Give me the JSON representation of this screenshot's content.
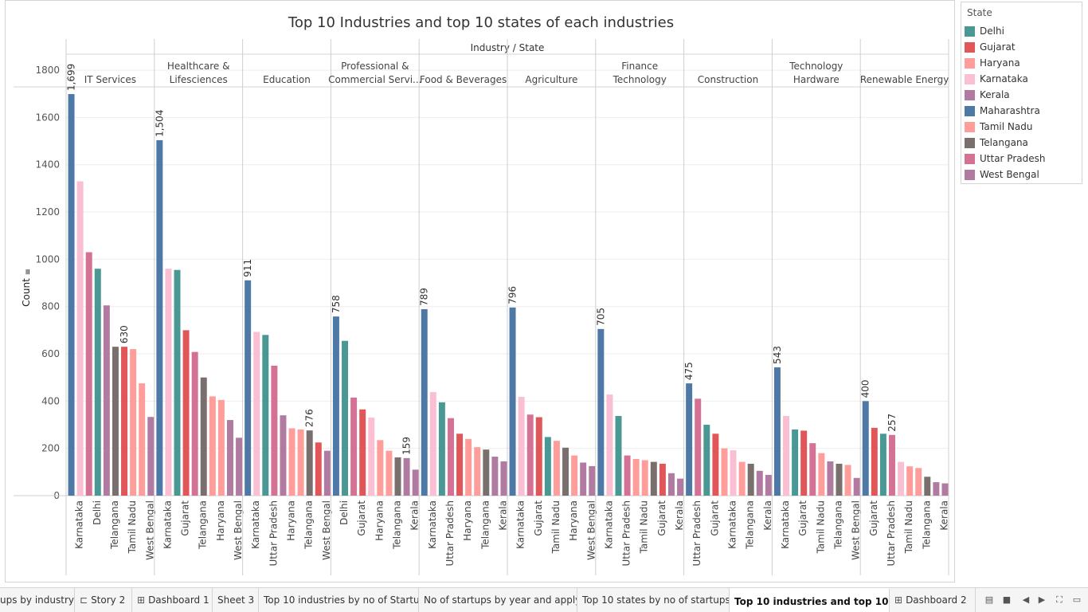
{
  "chart_data": {
    "type": "bar",
    "title": "Top 10 Industries and top 10 states of each industries",
    "column_header": "Industry / State",
    "ylabel": "Count",
    "ylim": [
      0,
      1900
    ],
    "yticks": [
      0,
      200,
      400,
      600,
      800,
      1000,
      1200,
      1400,
      1600,
      1800
    ],
    "grid": true,
    "legend_placement": "right",
    "groups": [
      {
        "industry": [
          "IT Services"
        ],
        "bars": [
          {
            "state": "Maharashtra",
            "value": 1699,
            "label": "1,699"
          },
          {
            "state": "Karnataka",
            "value": 1330
          },
          {
            "state": "Uttar Pradesh",
            "value": 1030
          },
          {
            "state": "Delhi",
            "value": 960
          },
          {
            "state": "Kerala",
            "value": 805
          },
          {
            "state": "Telangana",
            "value": 630
          },
          {
            "state": "Gujarat",
            "value": 630,
            "label": "630"
          },
          {
            "state": "Tamil Nadu",
            "value": 620
          },
          {
            "state": "Haryana",
            "value": 475
          },
          {
            "state": "West Bengal",
            "value": 333
          }
        ],
        "ticks": [
          "Karnataka",
          "Delhi",
          "Telangana",
          "Tamil Nadu",
          "West Bengal"
        ]
      },
      {
        "industry": [
          "Healthcare &",
          "Lifesciences"
        ],
        "bars": [
          {
            "state": "Maharashtra",
            "value": 1504,
            "label": "1,504"
          },
          {
            "state": "Karnataka",
            "value": 960
          },
          {
            "state": "Delhi",
            "value": 955
          },
          {
            "state": "Gujarat",
            "value": 700
          },
          {
            "state": "Uttar Pradesh",
            "value": 608
          },
          {
            "state": "Telangana",
            "value": 500
          },
          {
            "state": "Tamil Nadu",
            "value": 420
          },
          {
            "state": "Haryana",
            "value": 405
          },
          {
            "state": "Kerala",
            "value": 320
          },
          {
            "state": "West Bengal",
            "value": 245
          }
        ],
        "ticks": [
          "Karnataka",
          "Gujarat",
          "Telangana",
          "Haryana",
          "West Bengal"
        ]
      },
      {
        "industry": [
          "Education"
        ],
        "bars": [
          {
            "state": "Maharashtra",
            "value": 911,
            "label": "911"
          },
          {
            "state": "Karnataka",
            "value": 693
          },
          {
            "state": "Delhi",
            "value": 680
          },
          {
            "state": "Uttar Pradesh",
            "value": 550
          },
          {
            "state": "Kerala",
            "value": 340
          },
          {
            "state": "Haryana",
            "value": 285
          },
          {
            "state": "Tamil Nadu",
            "value": 280
          },
          {
            "state": "Telangana",
            "value": 276,
            "label": "276"
          },
          {
            "state": "Gujarat",
            "value": 225
          },
          {
            "state": "West Bengal",
            "value": 190
          }
        ],
        "ticks": [
          "Karnataka",
          "Uttar Pradesh",
          "Haryana",
          "Telangana",
          "West Bengal"
        ]
      },
      {
        "industry": [
          "Professional &",
          "Commercial Servi..."
        ],
        "bars": [
          {
            "state": "Maharashtra",
            "value": 758,
            "label": "758"
          },
          {
            "state": "Delhi",
            "value": 655
          },
          {
            "state": "Uttar Pradesh",
            "value": 415
          },
          {
            "state": "Gujarat",
            "value": 365
          },
          {
            "state": "Karnataka",
            "value": 330
          },
          {
            "state": "Tamil Nadu",
            "value": 235
          },
          {
            "state": "Haryana",
            "value": 190
          },
          {
            "state": "Telangana",
            "value": 162
          },
          {
            "state": "Kerala",
            "value": 159,
            "label": "159"
          },
          {
            "state": "West Bengal",
            "value": 110
          }
        ],
        "ticks": [
          "Delhi",
          "Gujarat",
          "Haryana",
          "Telangana",
          "Kerala"
        ]
      },
      {
        "industry": [
          "Food & Beverages"
        ],
        "bars": [
          {
            "state": "Maharashtra",
            "value": 789,
            "label": "789"
          },
          {
            "state": "Karnataka",
            "value": 438
          },
          {
            "state": "Delhi",
            "value": 395
          },
          {
            "state": "Uttar Pradesh",
            "value": 328
          },
          {
            "state": "Gujarat",
            "value": 262
          },
          {
            "state": "Haryana",
            "value": 240
          },
          {
            "state": "Tamil Nadu",
            "value": 205
          },
          {
            "state": "Telangana",
            "value": 195
          },
          {
            "state": "West Bengal",
            "value": 165
          },
          {
            "state": "Kerala",
            "value": 145
          }
        ],
        "ticks": [
          "Karnataka",
          "Uttar Pradesh",
          "Haryana",
          "Telangana",
          "Kerala"
        ]
      },
      {
        "industry": [
          "Agriculture"
        ],
        "bars": [
          {
            "state": "Maharashtra",
            "value": 796,
            "label": "796"
          },
          {
            "state": "Karnataka",
            "value": 418
          },
          {
            "state": "Uttar Pradesh",
            "value": 343
          },
          {
            "state": "Gujarat",
            "value": 332
          },
          {
            "state": "Delhi",
            "value": 248
          },
          {
            "state": "Tamil Nadu",
            "value": 232
          },
          {
            "state": "Telangana",
            "value": 203
          },
          {
            "state": "Haryana",
            "value": 170
          },
          {
            "state": "West Bengal",
            "value": 140
          },
          {
            "state": "Kerala",
            "value": 125
          }
        ],
        "ticks": [
          "Karnataka",
          "Gujarat",
          "Tamil Nadu",
          "Haryana",
          "West Bengal"
        ]
      },
      {
        "industry": [
          "Finance",
          "Technology"
        ],
        "bars": [
          {
            "state": "Maharashtra",
            "value": 705,
            "label": "705"
          },
          {
            "state": "Karnataka",
            "value": 428
          },
          {
            "state": "Delhi",
            "value": 337
          },
          {
            "state": "Uttar Pradesh",
            "value": 170
          },
          {
            "state": "Haryana",
            "value": 155
          },
          {
            "state": "Tamil Nadu",
            "value": 150
          },
          {
            "state": "Telangana",
            "value": 143
          },
          {
            "state": "Gujarat",
            "value": 135
          },
          {
            "state": "West Bengal",
            "value": 95
          },
          {
            "state": "Kerala",
            "value": 72
          }
        ],
        "ticks": [
          "Karnataka",
          "Uttar Pradesh",
          "Tamil Nadu",
          "Gujarat",
          "Kerala"
        ]
      },
      {
        "industry": [
          "Construction"
        ],
        "bars": [
          {
            "state": "Maharashtra",
            "value": 475,
            "label": "475"
          },
          {
            "state": "Uttar Pradesh",
            "value": 410
          },
          {
            "state": "Delhi",
            "value": 300
          },
          {
            "state": "Gujarat",
            "value": 262
          },
          {
            "state": "Haryana",
            "value": 200
          },
          {
            "state": "Karnataka",
            "value": 192
          },
          {
            "state": "Tamil Nadu",
            "value": 143
          },
          {
            "state": "Telangana",
            "value": 135
          },
          {
            "state": "Kerala",
            "value": 105
          },
          {
            "state": "West Bengal",
            "value": 88
          }
        ],
        "ticks": [
          "Uttar Pradesh",
          "Gujarat",
          "Karnataka",
          "Telangana",
          "Kerala"
        ]
      },
      {
        "industry": [
          "Technology",
          "Hardware"
        ],
        "bars": [
          {
            "state": "Maharashtra",
            "value": 543,
            "label": "543"
          },
          {
            "state": "Karnataka",
            "value": 337
          },
          {
            "state": "Delhi",
            "value": 280
          },
          {
            "state": "Gujarat",
            "value": 275
          },
          {
            "state": "Uttar Pradesh",
            "value": 222
          },
          {
            "state": "Tamil Nadu",
            "value": 180
          },
          {
            "state": "Kerala",
            "value": 145
          },
          {
            "state": "Telangana",
            "value": 135
          },
          {
            "state": "Haryana",
            "value": 130
          },
          {
            "state": "West Bengal",
            "value": 75
          }
        ],
        "ticks": [
          "Karnataka",
          "Gujarat",
          "Tamil Nadu",
          "Telangana",
          "West Bengal"
        ]
      },
      {
        "industry": [
          "Renewable Energy"
        ],
        "bars": [
          {
            "state": "Maharashtra",
            "value": 400,
            "label": "400"
          },
          {
            "state": "Gujarat",
            "value": 287
          },
          {
            "state": "Delhi",
            "value": 262
          },
          {
            "state": "Uttar Pradesh",
            "value": 257,
            "label": "257"
          },
          {
            "state": "Karnataka",
            "value": 143
          },
          {
            "state": "Tamil Nadu",
            "value": 124
          },
          {
            "state": "Haryana",
            "value": 117
          },
          {
            "state": "Telangana",
            "value": 80
          },
          {
            "state": "Kerala",
            "value": 57
          },
          {
            "state": "West Bengal",
            "value": 52
          }
        ],
        "ticks": [
          "Gujarat",
          "Uttar Pradesh",
          "Tamil Nadu",
          "Telangana",
          "Kerala"
        ]
      }
    ]
  },
  "legend": {
    "title": "State",
    "items": [
      {
        "name": "Delhi",
        "color": "#499894"
      },
      {
        "name": "Gujarat",
        "color": "#e15759"
      },
      {
        "name": "Haryana",
        "color": "#ff9d9a"
      },
      {
        "name": "Karnataka",
        "color": "#fabfd2"
      },
      {
        "name": "Kerala",
        "color": "#b07aa1"
      },
      {
        "name": "Maharashtra",
        "color": "#4e79a7"
      },
      {
        "name": "Tamil Nadu",
        "color": "#ff9d9a"
      },
      {
        "name": "Telangana",
        "color": "#79706e"
      },
      {
        "name": "Uttar Pradesh",
        "color": "#d37295"
      },
      {
        "name": "West Bengal",
        "color": "#b07aa1"
      }
    ]
  },
  "tabs": [
    {
      "label": "ups by industry",
      "icon": ""
    },
    {
      "label": "Story 2",
      "icon": "story-icon"
    },
    {
      "label": "Dashboard 1",
      "icon": "dashboard-icon"
    },
    {
      "label": "Sheet 3",
      "icon": ""
    },
    {
      "label": "Top 10 industries by no of Startu...",
      "icon": ""
    },
    {
      "label": "No of startups by year and apply...",
      "icon": ""
    },
    {
      "label": "Top 10 states by no of startups",
      "icon": ""
    },
    {
      "label": "Top 10 industries and top 10 s...",
      "icon": "",
      "active": true
    },
    {
      "label": "Dashboard 2",
      "icon": "dashboard-icon"
    }
  ]
}
